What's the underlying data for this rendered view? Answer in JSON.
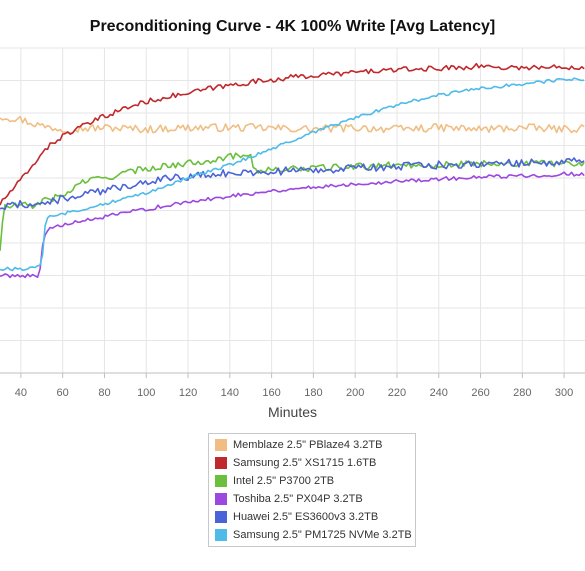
{
  "chart_data": {
    "type": "line",
    "title": "Preconditioning Curve - 4K 100% Write [Avg Latency]",
    "xlabel": "Minutes",
    "ylabel": "",
    "xlim": [
      30,
      310
    ],
    "ylim": [
      0,
      10
    ],
    "x_ticks": [
      40,
      60,
      80,
      100,
      120,
      140,
      160,
      180,
      200,
      220,
      240,
      260,
      280,
      300
    ],
    "grid": true,
    "legend_position": "bottom-center",
    "series": [
      {
        "name": "Memblaze 2.5\" PBlaze4 3.2TB",
        "color": "#F0BE82",
        "x": [
          30,
          40,
          50,
          60,
          80,
          100,
          120,
          150,
          180,
          200,
          220,
          240,
          260,
          280,
          300,
          310
        ],
        "y": [
          7.9,
          7.8,
          7.6,
          7.5,
          7.55,
          7.5,
          7.55,
          7.55,
          7.5,
          7.55,
          7.5,
          7.55,
          7.5,
          7.55,
          7.5,
          7.55
        ]
      },
      {
        "name": "Samsung 2.5\" XS1715 1.6TB",
        "color": "#C0282C",
        "x": [
          30,
          38,
          45,
          50,
          60,
          70,
          80,
          90,
          100,
          110,
          120,
          130,
          150,
          170,
          190,
          210,
          230,
          250,
          260,
          270,
          290,
          310
        ],
        "y": [
          5.2,
          5.8,
          6.3,
          6.8,
          7.3,
          7.6,
          7.9,
          8.15,
          8.35,
          8.5,
          8.6,
          8.75,
          8.95,
          9.1,
          9.2,
          9.3,
          9.35,
          9.4,
          9.45,
          9.4,
          9.4,
          9.42
        ]
      },
      {
        "name": "Intel 2.5\" P3700 2TB",
        "color": "#6ABF3C",
        "x": [
          30,
          32,
          34,
          40,
          45,
          50,
          60,
          70,
          80,
          90,
          100,
          120,
          140,
          150,
          152,
          160,
          180,
          200,
          220,
          240,
          260,
          280,
          300,
          310
        ],
        "y": [
          3.8,
          5.15,
          5.1,
          5.2,
          5.1,
          5.3,
          5.45,
          5.9,
          6.0,
          6.15,
          6.3,
          6.45,
          6.65,
          6.75,
          6.2,
          6.25,
          6.3,
          6.35,
          6.4,
          6.4,
          6.45,
          6.45,
          6.45,
          6.45
        ]
      },
      {
        "name": "Toshiba 2.5\" PX04P 3.2TB",
        "color": "#9B47E0",
        "x": [
          30,
          40,
          49,
          50,
          52,
          60,
          80,
          100,
          120,
          140,
          160,
          180,
          200,
          220,
          240,
          260,
          280,
          300,
          310
        ],
        "y": [
          3.0,
          3.0,
          3.0,
          3.85,
          4.4,
          4.55,
          4.8,
          5.05,
          5.25,
          5.45,
          5.6,
          5.72,
          5.82,
          5.9,
          5.97,
          6.02,
          6.07,
          6.12,
          6.12
        ]
      },
      {
        "name": "Huawei 2.5\" ES3600v3 3.2TB",
        "color": "#4A63D8",
        "x": [
          30,
          40,
          50,
          60,
          70,
          80,
          90,
          100,
          110,
          120,
          140,
          160,
          180,
          200,
          220,
          240,
          260,
          280,
          300,
          310
        ],
        "y": [
          5.1,
          5.2,
          5.2,
          5.35,
          5.5,
          5.6,
          5.75,
          5.9,
          6.0,
          6.05,
          6.15,
          6.2,
          6.25,
          6.3,
          6.35,
          6.4,
          6.45,
          6.45,
          6.5,
          6.5
        ]
      },
      {
        "name": "Samsung 2.5\" PM1725 NVMe 3.2TB",
        "color": "#4EBBE8",
        "x": [
          30,
          40,
          48,
          50,
          52,
          60,
          80,
          100,
          120,
          140,
          160,
          180,
          200,
          220,
          240,
          260,
          280,
          300,
          310
        ],
        "y": [
          3.2,
          3.2,
          3.25,
          3.4,
          4.8,
          4.9,
          5.2,
          5.55,
          6.0,
          6.4,
          6.9,
          7.4,
          7.85,
          8.25,
          8.55,
          8.75,
          8.9,
          9.02,
          9.05
        ]
      }
    ]
  }
}
